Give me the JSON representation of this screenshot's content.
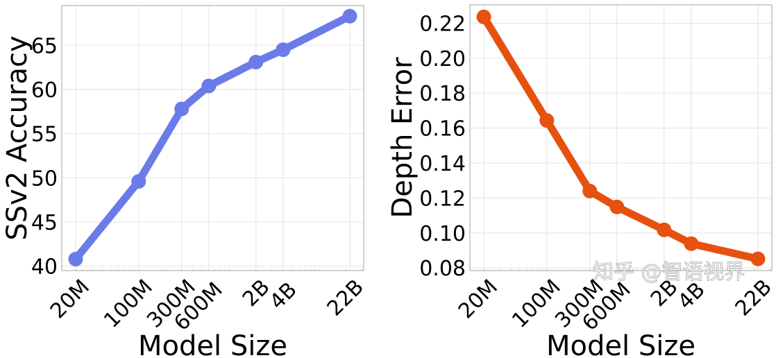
{
  "chart_data": [
    {
      "type": "line",
      "title": "",
      "xlabel": "Model Size",
      "ylabel": "SSv2 Accuracy",
      "xscale": "log",
      "categories": [
        "20M",
        "100M",
        "300M",
        "600M",
        "2B",
        "4B",
        "22B"
      ],
      "x": [
        20000000,
        100000000,
        300000000,
        600000000,
        2000000000,
        4000000000,
        22000000000
      ],
      "values": [
        40.8,
        49.6,
        57.8,
        60.4,
        63.1,
        64.5,
        68.3
      ],
      "yticks": [
        40,
        45,
        50,
        55,
        60,
        65
      ],
      "ytick_labels": [
        "40",
        "45",
        "50",
        "55",
        "60",
        "65"
      ],
      "ylim": [
        39.5,
        69.5
      ],
      "grid": true,
      "color": "#6b7be8"
    },
    {
      "type": "line",
      "title": "",
      "xlabel": "Model Size",
      "ylabel": "Depth Error",
      "xscale": "log",
      "categories": [
        "20M",
        "100M",
        "300M",
        "600M",
        "2B",
        "4B",
        "22B"
      ],
      "x": [
        20000000,
        100000000,
        300000000,
        600000000,
        2000000000,
        4000000000,
        22000000000
      ],
      "values": [
        0.2236,
        0.1644,
        0.124,
        0.1149,
        0.1018,
        0.0939,
        0.0852
      ],
      "yticks": [
        0.08,
        0.1,
        0.12,
        0.14,
        0.16,
        0.18,
        0.2,
        0.22
      ],
      "ytick_labels": [
        "0.08",
        "0.10",
        "0.12",
        "0.14",
        "0.16",
        "0.18",
        "0.20",
        "0.22"
      ],
      "ylim": [
        0.0785,
        0.2305
      ],
      "grid": true,
      "color": "#e65110"
    }
  ],
  "watermark": "知乎 @智语视界"
}
